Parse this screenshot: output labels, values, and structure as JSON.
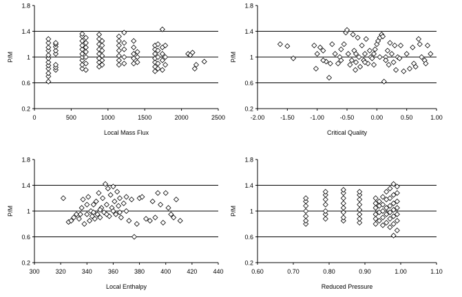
{
  "chart_data": [
    {
      "type": "scatter",
      "xlabel": "Local Mass Flux",
      "ylabel": "P/M",
      "xlim": [
        0,
        2500
      ],
      "ylim": [
        0.2,
        1.8
      ],
      "xticks": [
        "0",
        "500",
        "1000",
        "1500",
        "2000",
        "2500"
      ],
      "yticks": [
        "0.2",
        "0.6",
        "1",
        "1.4",
        "1.8"
      ],
      "gridlines_y": [
        0.6,
        1.0,
        1.4
      ],
      "marker": "diamond-open",
      "points": [
        [
          190,
          0.62
        ],
        [
          190,
          0.7
        ],
        [
          190,
          0.75
        ],
        [
          190,
          0.82
        ],
        [
          190,
          0.87
        ],
        [
          190,
          0.92
        ],
        [
          190,
          0.98
        ],
        [
          190,
          1.03
        ],
        [
          190,
          1.1
        ],
        [
          190,
          1.15
        ],
        [
          190,
          1.22
        ],
        [
          190,
          1.28
        ],
        [
          290,
          0.8
        ],
        [
          290,
          0.84
        ],
        [
          290,
          0.88
        ],
        [
          290,
          1.05
        ],
        [
          290,
          1.1
        ],
        [
          290,
          1.16
        ],
        [
          290,
          1.2
        ],
        [
          290,
          1.22
        ],
        [
          650,
          0.82
        ],
        [
          650,
          0.88
        ],
        [
          650,
          0.95
        ],
        [
          650,
          1.0
        ],
        [
          650,
          1.05
        ],
        [
          650,
          1.12
        ],
        [
          650,
          1.18
        ],
        [
          650,
          1.25
        ],
        [
          650,
          1.32
        ],
        [
          650,
          1.36
        ],
        [
          700,
          0.8
        ],
        [
          700,
          0.9
        ],
        [
          700,
          1.0
        ],
        [
          700,
          1.08
        ],
        [
          700,
          1.15
        ],
        [
          700,
          1.22
        ],
        [
          700,
          1.3
        ],
        [
          880,
          0.85
        ],
        [
          880,
          0.92
        ],
        [
          880,
          0.98
        ],
        [
          880,
          1.05
        ],
        [
          880,
          1.12
        ],
        [
          880,
          1.2
        ],
        [
          880,
          1.28
        ],
        [
          880,
          1.35
        ],
        [
          920,
          0.88
        ],
        [
          920,
          0.95
        ],
        [
          920,
          1.02
        ],
        [
          920,
          1.1
        ],
        [
          920,
          1.18
        ],
        [
          920,
          1.25
        ],
        [
          1150,
          0.88
        ],
        [
          1150,
          0.95
        ],
        [
          1150,
          1.02
        ],
        [
          1150,
          1.1
        ],
        [
          1150,
          1.18
        ],
        [
          1150,
          1.25
        ],
        [
          1150,
          1.32
        ],
        [
          1220,
          0.9
        ],
        [
          1220,
          1.0
        ],
        [
          1220,
          1.12
        ],
        [
          1220,
          1.22
        ],
        [
          1220,
          1.38
        ],
        [
          1350,
          0.9
        ],
        [
          1350,
          0.98
        ],
        [
          1350,
          1.05
        ],
        [
          1350,
          1.15
        ],
        [
          1350,
          1.25
        ],
        [
          1400,
          0.92
        ],
        [
          1400,
          1.0
        ],
        [
          1400,
          1.08
        ],
        [
          1640,
          0.78
        ],
        [
          1640,
          0.85
        ],
        [
          1640,
          0.92
        ],
        [
          1640,
          0.98
        ],
        [
          1640,
          1.05
        ],
        [
          1640,
          1.12
        ],
        [
          1640,
          1.18
        ],
        [
          1680,
          0.82
        ],
        [
          1680,
          0.9
        ],
        [
          1680,
          1.0
        ],
        [
          1680,
          1.1
        ],
        [
          1680,
          1.2
        ],
        [
          1740,
          0.8
        ],
        [
          1740,
          0.95
        ],
        [
          1740,
          1.05
        ],
        [
          1740,
          1.15
        ],
        [
          1740,
          1.43
        ],
        [
          1780,
          0.88
        ],
        [
          1780,
          1.0
        ],
        [
          1780,
          1.18
        ],
        [
          2090,
          1.05
        ],
        [
          2120,
          1.03
        ],
        [
          2150,
          1.07
        ],
        [
          2180,
          0.82
        ],
        [
          2200,
          0.88
        ],
        [
          2310,
          0.93
        ]
      ]
    },
    {
      "type": "scatter",
      "xlabel": "Critical Quality",
      "ylabel": "P/M",
      "xlim": [
        -2.0,
        1.0
      ],
      "ylim": [
        0.2,
        1.8
      ],
      "xticks": [
        "-2.00",
        "-1.50",
        "-1.00",
        "-0.50",
        "0.00",
        "0.50",
        "1.00"
      ],
      "yticks": [
        "0.2",
        "0.6",
        "1",
        "1.4",
        "1.8"
      ],
      "gridlines_y": [
        0.6,
        1.0,
        1.4
      ],
      "marker": "diamond-open",
      "points": [
        [
          -1.62,
          1.2
        ],
        [
          -1.5,
          1.17
        ],
        [
          -1.4,
          0.98
        ],
        [
          -1.05,
          1.18
        ],
        [
          -1.02,
          0.82
        ],
        [
          -1.0,
          1.05
        ],
        [
          -0.95,
          1.15
        ],
        [
          -0.9,
          1.1
        ],
        [
          -0.85,
          0.93
        ],
        [
          -0.8,
          0.68
        ],
        [
          -0.78,
          0.9
        ],
        [
          -0.75,
          1.2
        ],
        [
          -0.7,
          1.05
        ],
        [
          -0.65,
          0.9
        ],
        [
          -0.62,
          1.0
        ],
        [
          -0.6,
          0.95
        ],
        [
          -0.55,
          1.2
        ],
        [
          -0.52,
          1.38
        ],
        [
          -0.5,
          1.42
        ],
        [
          -0.48,
          1.05
        ],
        [
          -0.45,
          0.88
        ],
        [
          -0.42,
          0.95
        ],
        [
          -0.4,
          1.35
        ],
        [
          -0.38,
          1.1
        ],
        [
          -0.36,
          0.8
        ],
        [
          -0.35,
          0.92
        ],
        [
          -0.32,
          1.3
        ],
        [
          -0.3,
          1.0
        ],
        [
          -0.28,
          0.85
        ],
        [
          -0.25,
          1.18
        ],
        [
          -0.22,
          0.95
        ],
        [
          -0.2,
          1.05
        ],
        [
          -0.18,
          1.28
        ],
        [
          -0.15,
          0.9
        ],
        [
          -0.12,
          1.1
        ],
        [
          -0.1,
          1.0
        ],
        [
          -0.08,
          0.98
        ],
        [
          -0.05,
          1.05
        ],
        [
          -0.03,
          1.12
        ],
        [
          0.0,
          1.2
        ],
        [
          0.02,
          1.25
        ],
        [
          0.05,
          1.3
        ],
        [
          0.08,
          1.35
        ],
        [
          0.1,
          1.32
        ],
        [
          0.12,
          0.62
        ],
        [
          0.15,
          1.0
        ],
        [
          0.18,
          1.1
        ],
        [
          0.2,
          0.88
        ],
        [
          0.22,
          1.22
        ],
        [
          0.25,
          1.05
        ],
        [
          0.28,
          0.92
        ],
        [
          0.3,
          1.18
        ],
        [
          0.32,
          0.8
        ],
        [
          0.35,
          1.0
        ],
        [
          0.4,
          1.18
        ],
        [
          0.45,
          0.78
        ],
        [
          0.5,
          1.05
        ],
        [
          0.55,
          0.82
        ],
        [
          0.6,
          1.15
        ],
        [
          0.62,
          0.9
        ],
        [
          0.65,
          0.85
        ],
        [
          0.7,
          1.28
        ],
        [
          0.72,
          1.2
        ],
        [
          0.75,
          1.0
        ],
        [
          0.8,
          0.95
        ],
        [
          0.82,
          0.9
        ],
        [
          0.85,
          1.18
        ],
        [
          0.9,
          1.05
        ],
        [
          -0.9,
          0.95
        ],
        [
          -0.6,
          1.12
        ],
        [
          -0.35,
          1.05
        ],
        [
          -0.2,
          0.92
        ],
        [
          -0.05,
          0.88
        ],
        [
          0.05,
          1.0
        ],
        [
          0.15,
          0.95
        ],
        [
          0.38,
          0.98
        ]
      ]
    },
    {
      "type": "scatter",
      "xlabel": "Local Enthalpy",
      "ylabel": "P/M",
      "xlim": [
        300,
        440
      ],
      "ylim": [
        0.2,
        1.8
      ],
      "xticks": [
        "300",
        "320",
        "340",
        "360",
        "380",
        "400",
        "420",
        "440"
      ],
      "yticks": [
        "0.2",
        "0.6",
        "1",
        "1.4",
        "1.8"
      ],
      "gridlines_y": [
        0.6,
        1.0,
        1.4
      ],
      "marker": "diamond-open",
      "points": [
        [
          322,
          1.2
        ],
        [
          326,
          0.83
        ],
        [
          328,
          0.85
        ],
        [
          330,
          0.9
        ],
        [
          332,
          0.95
        ],
        [
          334,
          0.88
        ],
        [
          336,
          1.05
        ],
        [
          337,
          1.18
        ],
        [
          338,
          0.8
        ],
        [
          340,
          0.95
        ],
        [
          341,
          1.22
        ],
        [
          342,
          0.85
        ],
        [
          343,
          1.0
        ],
        [
          344,
          0.92
        ],
        [
          345,
          1.1
        ],
        [
          346,
          0.88
        ],
        [
          347,
          1.15
        ],
        [
          348,
          0.95
        ],
        [
          349,
          1.28
        ],
        [
          350,
          0.9
        ],
        [
          351,
          1.05
        ],
        [
          352,
          1.2
        ],
        [
          353,
          0.98
        ],
        [
          354,
          1.42
        ],
        [
          355,
          1.1
        ],
        [
          356,
          1.35
        ],
        [
          357,
          0.92
        ],
        [
          358,
          1.25
        ],
        [
          359,
          1.05
        ],
        [
          360,
          1.38
        ],
        [
          361,
          1.15
        ],
        [
          362,
          0.95
        ],
        [
          363,
          1.3
        ],
        [
          364,
          1.08
        ],
        [
          365,
          1.2
        ],
        [
          366,
          0.9
        ],
        [
          368,
          1.12
        ],
        [
          370,
          1.0
        ],
        [
          372,
          0.85
        ],
        [
          374,
          1.18
        ],
        [
          376,
          0.6
        ],
        [
          378,
          0.8
        ],
        [
          380,
          1.2
        ],
        [
          382,
          1.22
        ],
        [
          385,
          0.88
        ],
        [
          388,
          0.85
        ],
        [
          390,
          1.15
        ],
        [
          392,
          0.9
        ],
        [
          394,
          1.28
        ],
        [
          396,
          1.1
        ],
        [
          398,
          0.82
        ],
        [
          400,
          1.28
        ],
        [
          402,
          1.05
        ],
        [
          404,
          0.95
        ],
        [
          406,
          0.9
        ],
        [
          408,
          1.18
        ],
        [
          411,
          0.85
        ],
        [
          335,
          0.95
        ],
        [
          340,
          1.1
        ],
        [
          345,
          0.98
        ],
        [
          350,
          1.02
        ],
        [
          355,
          0.95
        ],
        [
          360,
          1.0
        ],
        [
          365,
          0.98
        ],
        [
          370,
          1.22
        ]
      ]
    },
    {
      "type": "scatter",
      "xlabel": "Reduced Pressure",
      "ylabel": "P/M",
      "xlim": [
        0.6,
        1.1
      ],
      "ylim": [
        0.2,
        1.8
      ],
      "xticks": [
        "0.60",
        "0.70",
        "0.80",
        "0.90",
        "1.00",
        "1.10"
      ],
      "yticks": [
        "0.2",
        "0.6",
        "1",
        "1.4",
        "1.8"
      ],
      "gridlines_y": [
        0.6,
        1.0,
        1.4
      ],
      "marker": "diamond-open",
      "points": [
        [
          0.735,
          0.8
        ],
        [
          0.735,
          0.85
        ],
        [
          0.735,
          0.92
        ],
        [
          0.735,
          1.0
        ],
        [
          0.735,
          1.08
        ],
        [
          0.735,
          1.15
        ],
        [
          0.735,
          1.2
        ],
        [
          0.79,
          0.88
        ],
        [
          0.79,
          0.95
        ],
        [
          0.79,
          1.0
        ],
        [
          0.79,
          1.1
        ],
        [
          0.79,
          1.18
        ],
        [
          0.79,
          1.25
        ],
        [
          0.79,
          1.3
        ],
        [
          0.84,
          0.85
        ],
        [
          0.84,
          0.9
        ],
        [
          0.84,
          0.98
        ],
        [
          0.84,
          1.05
        ],
        [
          0.84,
          1.12
        ],
        [
          0.84,
          1.2
        ],
        [
          0.84,
          1.28
        ],
        [
          0.84,
          1.33
        ],
        [
          0.885,
          0.82
        ],
        [
          0.885,
          0.88
        ],
        [
          0.885,
          0.95
        ],
        [
          0.885,
          1.02
        ],
        [
          0.885,
          1.1
        ],
        [
          0.885,
          1.18
        ],
        [
          0.885,
          1.25
        ],
        [
          0.885,
          1.3
        ],
        [
          0.93,
          0.8
        ],
        [
          0.93,
          0.88
        ],
        [
          0.93,
          0.95
        ],
        [
          0.93,
          1.05
        ],
        [
          0.93,
          1.12
        ],
        [
          0.93,
          1.2
        ],
        [
          0.94,
          0.85
        ],
        [
          0.94,
          0.98
        ],
        [
          0.94,
          1.08
        ],
        [
          0.94,
          1.15
        ],
        [
          0.95,
          0.78
        ],
        [
          0.95,
          0.9
        ],
        [
          0.95,
          1.0
        ],
        [
          0.95,
          1.1
        ],
        [
          0.95,
          1.22
        ],
        [
          0.96,
          0.82
        ],
        [
          0.96,
          0.95
        ],
        [
          0.96,
          1.05
        ],
        [
          0.96,
          1.18
        ],
        [
          0.96,
          1.3
        ],
        [
          0.97,
          0.75
        ],
        [
          0.97,
          0.88
        ],
        [
          0.97,
          0.98
        ],
        [
          0.97,
          1.08
        ],
        [
          0.97,
          1.2
        ],
        [
          0.97,
          1.35
        ],
        [
          0.98,
          0.62
        ],
        [
          0.98,
          0.8
        ],
        [
          0.98,
          0.92
        ],
        [
          0.98,
          1.02
        ],
        [
          0.98,
          1.12
        ],
        [
          0.98,
          1.25
        ],
        [
          0.98,
          1.42
        ],
        [
          0.99,
          0.7
        ],
        [
          0.99,
          0.85
        ],
        [
          0.99,
          0.95
        ],
        [
          0.99,
          1.05
        ],
        [
          0.99,
          1.15
        ],
        [
          0.99,
          1.28
        ],
        [
          0.99,
          1.38
        ]
      ]
    }
  ]
}
